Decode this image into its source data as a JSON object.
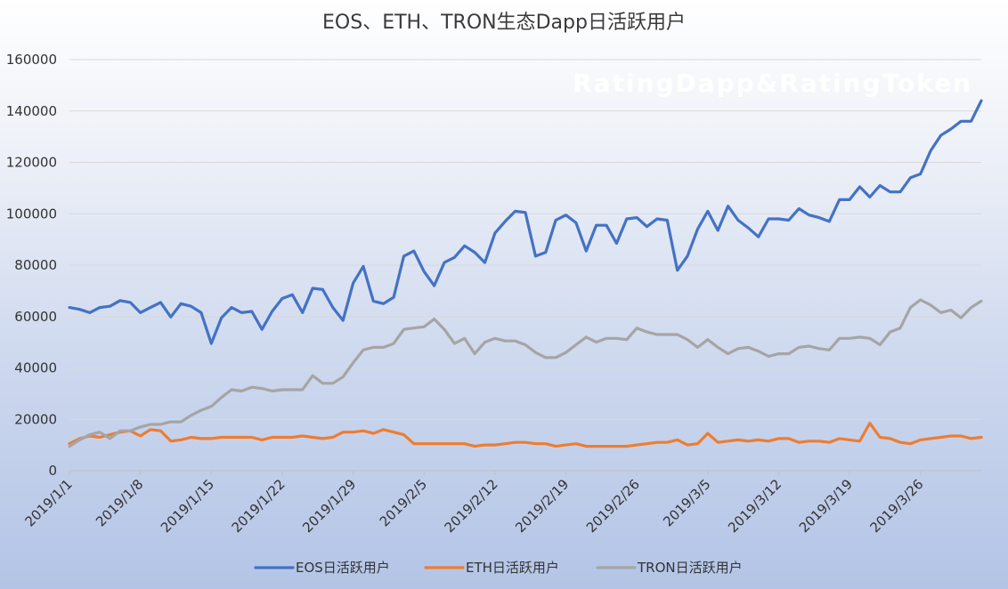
{
  "chart_data": {
    "type": "line",
    "title": "EOS、ETH、TRON生态Dapp日活跃用户",
    "watermark": "RatingDapp&RatingToken",
    "ylim": [
      0,
      160000
    ],
    "yticks": [
      0,
      20000,
      40000,
      60000,
      80000,
      100000,
      120000,
      140000,
      160000
    ],
    "xtick_labels": [
      "2019/1/1",
      "2019/1/8",
      "2019/1/15",
      "2019/1/22",
      "2019/1/29",
      "2019/2/5",
      "2019/2/12",
      "2019/2/19",
      "2019/2/26",
      "2019/3/5",
      "2019/3/12",
      "2019/3/19",
      "2019/3/26"
    ],
    "grid": true,
    "legend_position": "bottom",
    "series": [
      {
        "name": "EOS日活跃用户",
        "color": "#4472c4",
        "values": [
          63500,
          62800,
          61500,
          63500,
          64000,
          66200,
          65500,
          61500,
          63500,
          65500,
          59800,
          65000,
          64000,
          61500,
          49500,
          59500,
          63500,
          61500,
          62000,
          55000,
          62000,
          67000,
          68500,
          61500,
          71000,
          70500,
          63500,
          58500,
          73000,
          79500,
          66000,
          65000,
          67500,
          83500,
          85500,
          77500,
          72000,
          81000,
          83000,
          87500,
          85000,
          81000,
          92500,
          97000,
          101000,
          100500,
          83500,
          85000,
          97500,
          99500,
          96500,
          85500,
          95500,
          95500,
          88500,
          98000,
          98500,
          95000,
          98000,
          97500,
          78000,
          83500,
          94000,
          101000,
          93500,
          103000,
          97500,
          94500,
          91000,
          98000,
          98000,
          97500,
          102000,
          99500,
          98500,
          97000,
          105500,
          105500,
          110500,
          106500,
          111000,
          108500,
          108500,
          114000,
          115500,
          124500,
          130500,
          133000,
          136000,
          136000,
          144000
        ]
      },
      {
        "name": "ETH日活跃用户",
        "color": "#ed7d31",
        "values": [
          10500,
          12500,
          13500,
          13000,
          14000,
          15000,
          15500,
          13500,
          16000,
          15500,
          11500,
          12000,
          13000,
          12500,
          12500,
          13000,
          13000,
          13000,
          13000,
          12000,
          13000,
          13000,
          13000,
          13500,
          13000,
          12500,
          13000,
          15000,
          15000,
          15500,
          14500,
          16000,
          15000,
          14000,
          10500,
          10500,
          10500,
          10500,
          10500,
          10500,
          9500,
          10000,
          10000,
          10500,
          11000,
          11000,
          10500,
          10500,
          9500,
          10000,
          10500,
          9500,
          9500,
          9500,
          9500,
          9500,
          10000,
          10500,
          11000,
          11000,
          12000,
          10000,
          10500,
          14500,
          11000,
          11500,
          12000,
          11500,
          12000,
          11500,
          12500,
          12500,
          11000,
          11500,
          11500,
          11000,
          12500,
          12000,
          11500,
          18500,
          13000,
          12500,
          11000,
          10500,
          12000,
          12500,
          13000,
          13500,
          13500,
          12500,
          13000
        ]
      },
      {
        "name": "TRON日活跃用户",
        "color": "#a5a5a5",
        "values": [
          9500,
          12000,
          14000,
          15000,
          12500,
          15500,
          15500,
          17000,
          18000,
          18000,
          19000,
          19000,
          21500,
          23500,
          25000,
          28500,
          31500,
          31000,
          32500,
          32000,
          31000,
          31500,
          31500,
          31500,
          37000,
          34000,
          34000,
          36500,
          42000,
          47000,
          48000,
          48000,
          49500,
          55000,
          55500,
          56000,
          59000,
          55000,
          49500,
          51500,
          45500,
          50000,
          51500,
          50500,
          50500,
          49000,
          46000,
          44000,
          44000,
          46000,
          49000,
          52000,
          50000,
          51500,
          51500,
          51000,
          55500,
          54000,
          53000,
          53000,
          53000,
          51000,
          48000,
          51000,
          48000,
          45500,
          47500,
          48000,
          46500,
          44500,
          45500,
          45500,
          48000,
          48500,
          47500,
          47000,
          51500,
          51500,
          52000,
          51500,
          49000,
          54000,
          55500,
          63500,
          66500,
          64500,
          61500,
          62500,
          59500,
          63500,
          66000
        ]
      }
    ]
  }
}
